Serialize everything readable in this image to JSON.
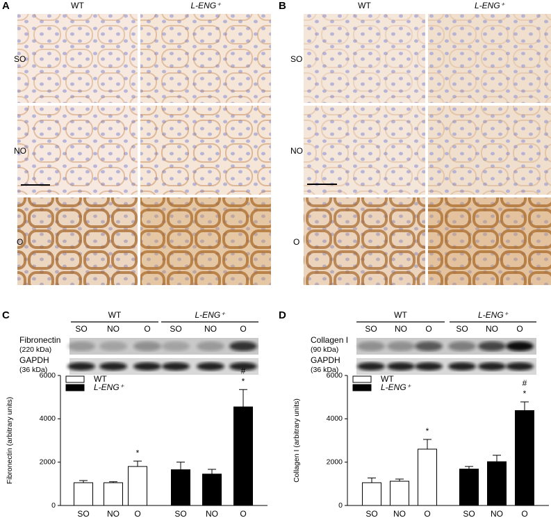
{
  "chart_data": [
    {
      "type": "bar",
      "ylabel": "Fibronectin  (arbitrary units)",
      "categories": [
        "SO",
        "NO",
        "O"
      ],
      "ylim": [
        0,
        6000
      ],
      "yticks": [
        0,
        2000,
        4000,
        6000
      ],
      "legend": "upper left",
      "series": [
        {
          "name": "WT",
          "color": "#ffffff",
          "values": [
            1050,
            1050,
            1800
          ],
          "errors": [
            100,
            50,
            250
          ]
        },
        {
          "name": "L-ENG⁺",
          "color": "#000000",
          "values": [
            1650,
            1450,
            4550
          ],
          "errors": [
            350,
            220,
            800
          ]
        }
      ],
      "annotations": [
        {
          "text": "*",
          "series": "WT",
          "category": "O"
        },
        {
          "text": "*",
          "series": "L-ENG⁺",
          "category": "O"
        },
        {
          "text": "#",
          "series": "L-ENG⁺",
          "category": "O"
        }
      ]
    },
    {
      "type": "bar",
      "ylabel": "Collagen I (arbitrary units)",
      "categories": [
        "SO",
        "NO",
        "O"
      ],
      "ylim": [
        0,
        6000
      ],
      "yticks": [
        0,
        2000,
        4000,
        6000
      ],
      "legend": "upper left",
      "series": [
        {
          "name": "WT",
          "color": "#ffffff",
          "values": [
            1050,
            1120,
            2600
          ],
          "errors": [
            220,
            100,
            450
          ]
        },
        {
          "name": "L-ENG⁺",
          "color": "#000000",
          "values": [
            1680,
            2020,
            4380
          ],
          "errors": [
            120,
            300,
            400
          ]
        }
      ],
      "annotations": [
        {
          "text": "*",
          "series": "WT",
          "category": "O"
        },
        {
          "text": "*",
          "series": "L-ENG⁺",
          "category": "O"
        },
        {
          "text": "#",
          "series": "L-ENG⁺",
          "category": "O"
        }
      ]
    }
  ],
  "panels": [
    {
      "label": "A",
      "columns": [
        "WT",
        "L-ENG⁺"
      ],
      "rows": [
        "SO",
        "NO",
        "O"
      ]
    },
    {
      "label": "B",
      "columns": [
        "WT",
        "L-ENG⁺"
      ],
      "rows": [
        "SO",
        "NO",
        "O"
      ]
    },
    {
      "label": "C",
      "groups": [
        "WT",
        "L-ENG⁺"
      ],
      "lanes": [
        "SO",
        "NO",
        "O",
        "SO",
        "NO",
        "O"
      ],
      "proteins": [
        {
          "name": "Fibronectin",
          "size": "(220 kDa)"
        },
        {
          "name": "GAPDH",
          "size": "(36 kDa)"
        }
      ]
    },
    {
      "label": "D",
      "groups": [
        "WT",
        "L-ENG⁺"
      ],
      "lanes": [
        "SO",
        "NO",
        "O",
        "SO",
        "NO",
        "O"
      ],
      "proteins": [
        {
          "name": "Collagen I",
          "size": "(90 kDa)"
        },
        {
          "name": "GAPDH",
          "size": "(36 kDa)"
        }
      ]
    }
  ]
}
